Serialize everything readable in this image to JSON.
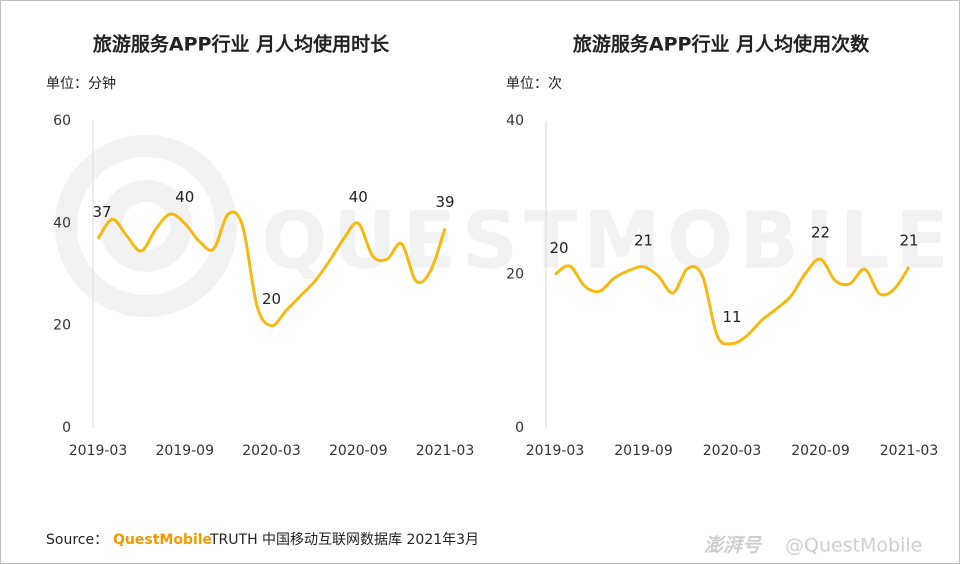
{
  "chart_data": [
    {
      "type": "line",
      "title": "旅游服务APP行业 月人均使用时长",
      "y_label": "单位：分钟",
      "categories": [
        "2019-03",
        null,
        null,
        null,
        null,
        null,
        "2019-09",
        null,
        null,
        null,
        null,
        null,
        "2020-03",
        null,
        null,
        null,
        null,
        null,
        "2020-09",
        null,
        null,
        null,
        null,
        null,
        "2021-03"
      ],
      "series": [
        {
          "name": "月人均使用时长",
          "color": "#f5b914",
          "values": [
            37,
            40.8,
            37.5,
            34.6,
            38.9,
            41.8,
            40,
            36.5,
            35,
            41.8,
            39.5,
            23.8,
            20,
            22.9,
            25.8,
            28.7,
            32.6,
            37,
            40,
            33.6,
            33,
            36,
            28.7,
            30.7,
            39
          ],
          "value_labels": [
            "37",
            null,
            null,
            null,
            null,
            null,
            "40",
            null,
            null,
            null,
            null,
            null,
            "20",
            null,
            null,
            null,
            null,
            null,
            "40",
            null,
            null,
            null,
            null,
            null,
            "39"
          ]
        }
      ],
      "ylim": [
        0,
        60
      ],
      "yticks": [
        0,
        20,
        40,
        60
      ]
    },
    {
      "type": "line",
      "title": "旅游服务APP行业 月人均使用次数",
      "y_label": "单位：次",
      "categories": [
        "2019-03",
        null,
        null,
        null,
        null,
        null,
        "2019-09",
        null,
        null,
        null,
        null,
        null,
        "2020-03",
        null,
        null,
        null,
        null,
        null,
        "2020-09",
        null,
        null,
        null,
        null,
        null,
        "2021-03"
      ],
      "series": [
        {
          "name": "月人均使用次数",
          "color": "#f5b914",
          "values": [
            20,
            21.1,
            18.5,
            17.8,
            19.5,
            20.5,
            21,
            19.8,
            17.6,
            20.8,
            19.8,
            12,
            11,
            12,
            14,
            15.5,
            17.2,
            20.2,
            22,
            19.2,
            18.8,
            20.7,
            17.5,
            18.1,
            21
          ],
          "value_labels": [
            "20",
            null,
            null,
            null,
            null,
            null,
            "21",
            null,
            null,
            null,
            null,
            null,
            "11",
            null,
            null,
            null,
            null,
            null,
            "22",
            null,
            null,
            null,
            null,
            null,
            "21"
          ]
        }
      ],
      "ylim": [
        0,
        40
      ],
      "yticks": [
        0,
        20,
        40
      ]
    }
  ],
  "source": {
    "label": "Source：",
    "brand": "QuestMobile",
    "text": "TRUTH 中国移动互联网数据库 2021年3月"
  },
  "watermark": "QUESTMOBILE",
  "credit": {
    "logo": "澎湃号",
    "handle": "@QuestMobile"
  }
}
